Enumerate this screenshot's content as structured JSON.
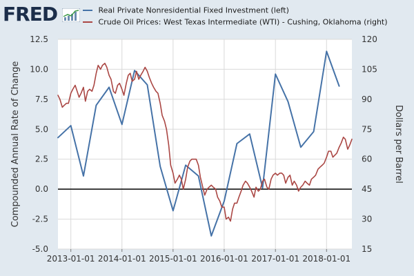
{
  "brand": "FRED",
  "chart_data": {
    "type": "line",
    "title": "",
    "xlabel": "",
    "ylabel_left": "Compounded Annual Rate of Change",
    "ylabel_right": "Dollars per Barrel",
    "ylim_left": [
      -5.0,
      12.5
    ],
    "ylim_right": [
      15,
      120
    ],
    "xlim": [
      "2012-10-01",
      "2018-07-01"
    ],
    "x_tick_labels": [
      "2013-01-01",
      "2014-01-01",
      "2015-01-01",
      "2016-01-01",
      "2017-01-01",
      "2018-01-01"
    ],
    "y_left_tick_labels": [
      "-5.0",
      "-2.5",
      "0.0",
      "2.5",
      "5.0",
      "7.5",
      "10.0",
      "12.5"
    ],
    "y_right_tick_labels": [
      "15",
      "30",
      "45",
      "60",
      "75",
      "90",
      "105",
      "120"
    ],
    "grid": true,
    "zero_line": true,
    "series": [
      {
        "name": "Real Private Nonresidential Fixed Investment (left)",
        "axis": "left",
        "color": "#4572a7",
        "points": [
          [
            "2012-10-01",
            4.3
          ],
          [
            "2013-01-01",
            5.3
          ],
          [
            "2013-04-01",
            1.1
          ],
          [
            "2013-07-01",
            7.0
          ],
          [
            "2013-10-01",
            8.5
          ],
          [
            "2014-01-01",
            5.4
          ],
          [
            "2014-04-01",
            9.9
          ],
          [
            "2014-07-01",
            8.7
          ],
          [
            "2014-10-01",
            1.9
          ],
          [
            "2015-01-01",
            -1.8
          ],
          [
            "2015-04-01",
            2.0
          ],
          [
            "2015-07-01",
            1.1
          ],
          [
            "2015-10-01",
            -3.9
          ],
          [
            "2016-01-01",
            -1.0
          ],
          [
            "2016-04-01",
            3.8
          ],
          [
            "2016-07-01",
            4.6
          ],
          [
            "2016-10-01",
            0.1
          ],
          [
            "2017-01-01",
            9.6
          ],
          [
            "2017-04-01",
            7.3
          ],
          [
            "2017-07-01",
            3.5
          ],
          [
            "2017-10-01",
            4.8
          ],
          [
            "2018-01-01",
            11.5
          ],
          [
            "2018-04-01",
            8.6
          ]
        ]
      },
      {
        "name": "Crude Oil Prices: West Texas Intermediate (WTI) - Cushing, Oklahoma (right)",
        "axis": "right",
        "color": "#aa4643",
        "points": [
          [
            "2012-10-01",
            92
          ],
          [
            "2012-10-15",
            90
          ],
          [
            "2012-11-01",
            86
          ],
          [
            "2012-11-15",
            87
          ],
          [
            "2012-12-01",
            88
          ],
          [
            "2012-12-15",
            88
          ],
          [
            "2013-01-01",
            93
          ],
          [
            "2013-01-15",
            95
          ],
          [
            "2013-02-01",
            97
          ],
          [
            "2013-02-15",
            94
          ],
          [
            "2013-03-01",
            91
          ],
          [
            "2013-03-15",
            93
          ],
          [
            "2013-04-01",
            96
          ],
          [
            "2013-04-15",
            89
          ],
          [
            "2013-05-01",
            94
          ],
          [
            "2013-05-15",
            95
          ],
          [
            "2013-06-01",
            94
          ],
          [
            "2013-06-15",
            97
          ],
          [
            "2013-07-01",
            103
          ],
          [
            "2013-07-15",
            107
          ],
          [
            "2013-08-01",
            105
          ],
          [
            "2013-08-15",
            107
          ],
          [
            "2013-09-01",
            108
          ],
          [
            "2013-09-15",
            106
          ],
          [
            "2013-10-01",
            102
          ],
          [
            "2013-10-15",
            100
          ],
          [
            "2013-11-01",
            94
          ],
          [
            "2013-11-15",
            93
          ],
          [
            "2013-12-01",
            97
          ],
          [
            "2013-12-15",
            98
          ],
          [
            "2014-01-01",
            95
          ],
          [
            "2014-01-15",
            92
          ],
          [
            "2014-02-01",
            98
          ],
          [
            "2014-02-15",
            102
          ],
          [
            "2014-03-01",
            103
          ],
          [
            "2014-03-15",
            99
          ],
          [
            "2014-04-01",
            100
          ],
          [
            "2014-04-15",
            104
          ],
          [
            "2014-05-01",
            100
          ],
          [
            "2014-05-15",
            102
          ],
          [
            "2014-06-01",
            104
          ],
          [
            "2014-06-15",
            106
          ],
          [
            "2014-07-01",
            104
          ],
          [
            "2014-07-15",
            101
          ],
          [
            "2014-08-01",
            98
          ],
          [
            "2014-08-15",
            96
          ],
          [
            "2014-09-01",
            94
          ],
          [
            "2014-09-15",
            93
          ],
          [
            "2014-10-01",
            88
          ],
          [
            "2014-10-15",
            82
          ],
          [
            "2014-11-01",
            79
          ],
          [
            "2014-11-15",
            75
          ],
          [
            "2014-12-01",
            67
          ],
          [
            "2014-12-15",
            57
          ],
          [
            "2015-01-01",
            53
          ],
          [
            "2015-01-15",
            48
          ],
          [
            "2015-02-01",
            50
          ],
          [
            "2015-02-15",
            52
          ],
          [
            "2015-03-01",
            50
          ],
          [
            "2015-03-15",
            45
          ],
          [
            "2015-04-01",
            50
          ],
          [
            "2015-04-15",
            56
          ],
          [
            "2015-05-01",
            59
          ],
          [
            "2015-05-15",
            60
          ],
          [
            "2015-06-01",
            60
          ],
          [
            "2015-06-15",
            60
          ],
          [
            "2015-07-01",
            57
          ],
          [
            "2015-07-15",
            51
          ],
          [
            "2015-08-01",
            46
          ],
          [
            "2015-08-15",
            42
          ],
          [
            "2015-09-01",
            45
          ],
          [
            "2015-09-15",
            46
          ],
          [
            "2015-10-01",
            47
          ],
          [
            "2015-10-15",
            46
          ],
          [
            "2015-11-01",
            45
          ],
          [
            "2015-11-15",
            41
          ],
          [
            "2015-12-01",
            39
          ],
          [
            "2015-12-15",
            36
          ],
          [
            "2016-01-01",
            36
          ],
          [
            "2016-01-15",
            30
          ],
          [
            "2016-02-01",
            31
          ],
          [
            "2016-02-15",
            29
          ],
          [
            "2016-03-01",
            35
          ],
          [
            "2016-03-15",
            38
          ],
          [
            "2016-04-01",
            38
          ],
          [
            "2016-04-15",
            41
          ],
          [
            "2016-05-01",
            44
          ],
          [
            "2016-05-15",
            47
          ],
          [
            "2016-06-01",
            49
          ],
          [
            "2016-06-15",
            48
          ],
          [
            "2016-07-01",
            46
          ],
          [
            "2016-07-15",
            44
          ],
          [
            "2016-08-01",
            41
          ],
          [
            "2016-08-15",
            46
          ],
          [
            "2016-09-01",
            44
          ],
          [
            "2016-09-15",
            45
          ],
          [
            "2016-10-01",
            49
          ],
          [
            "2016-10-15",
            50
          ],
          [
            "2016-11-01",
            46
          ],
          [
            "2016-11-15",
            45
          ],
          [
            "2016-12-01",
            50
          ],
          [
            "2016-12-15",
            52
          ],
          [
            "2017-01-01",
            53
          ],
          [
            "2017-01-15",
            52
          ],
          [
            "2017-02-01",
            53
          ],
          [
            "2017-02-15",
            53
          ],
          [
            "2017-03-01",
            52
          ],
          [
            "2017-03-15",
            48
          ],
          [
            "2017-04-01",
            51
          ],
          [
            "2017-04-15",
            52
          ],
          [
            "2017-05-01",
            47
          ],
          [
            "2017-05-15",
            49
          ],
          [
            "2017-06-01",
            47
          ],
          [
            "2017-06-15",
            44
          ],
          [
            "2017-07-01",
            46
          ],
          [
            "2017-07-15",
            47
          ],
          [
            "2017-08-01",
            49
          ],
          [
            "2017-08-15",
            48
          ],
          [
            "2017-09-01",
            47
          ],
          [
            "2017-09-15",
            50
          ],
          [
            "2017-10-01",
            51
          ],
          [
            "2017-10-15",
            52
          ],
          [
            "2017-11-01",
            55
          ],
          [
            "2017-11-15",
            56
          ],
          [
            "2017-12-01",
            57
          ],
          [
            "2017-12-15",
            58
          ],
          [
            "2018-01-01",
            61
          ],
          [
            "2018-01-15",
            64
          ],
          [
            "2018-02-01",
            64
          ],
          [
            "2018-02-15",
            61
          ],
          [
            "2018-03-01",
            62
          ],
          [
            "2018-03-15",
            63
          ],
          [
            "2018-04-01",
            66
          ],
          [
            "2018-04-15",
            68
          ],
          [
            "2018-05-01",
            71
          ],
          [
            "2018-05-15",
            70
          ],
          [
            "2018-06-01",
            65
          ],
          [
            "2018-06-15",
            67
          ],
          [
            "2018-07-01",
            70
          ]
        ]
      }
    ]
  }
}
